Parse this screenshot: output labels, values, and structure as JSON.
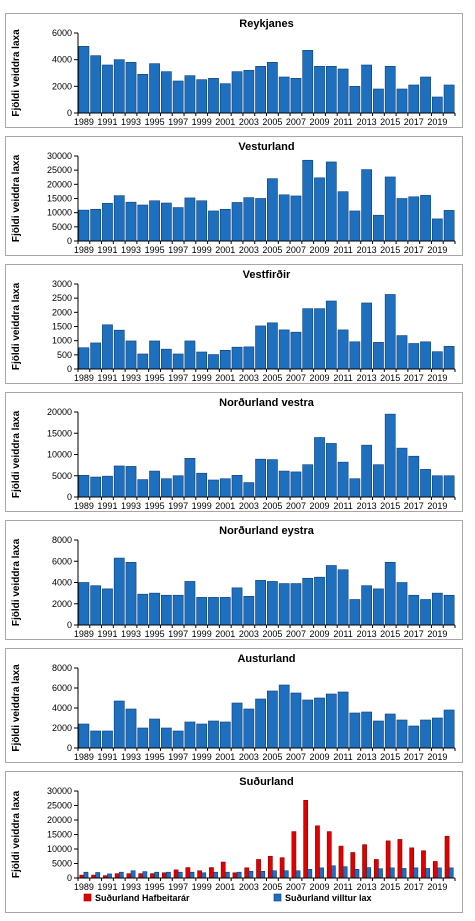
{
  "y_axis_label": "Fjöldi veiddra laxa",
  "colors": {
    "wild": "#1f6fbf",
    "wild_edge": "#0b3d73",
    "ranched": "#e00000",
    "ranched_edge": "#8a0000",
    "axis": "#000000"
  },
  "chart_data": [
    {
      "type": "bar",
      "title": "Reykjanes",
      "ylabel": "Fjöldi veiddra laxa",
      "ylim": [
        0,
        6000
      ],
      "yticks": [
        0,
        2000,
        4000,
        6000
      ],
      "x": [
        1989,
        1990,
        1991,
        1992,
        1993,
        1994,
        1995,
        1996,
        1997,
        1998,
        1999,
        2000,
        2001,
        2002,
        2003,
        2004,
        2005,
        2006,
        2007,
        2008,
        2009,
        2010,
        2011,
        2012,
        2013,
        2014,
        2015,
        2016,
        2017,
        2018,
        2019,
        2020
      ],
      "xtick_labels": [
        "1989",
        "1991",
        "1993",
        "1995",
        "1997",
        "1999",
        "2001",
        "2003",
        "2005",
        "2007",
        "2009",
        "2011",
        "2013",
        "2015",
        "2017",
        "2019"
      ],
      "series": [
        {
          "values": [
            5000,
            4300,
            3600,
            4000,
            3800,
            2900,
            3700,
            3100,
            2400,
            2800,
            2500,
            2600,
            2200,
            3100,
            3200,
            3500,
            3800,
            2700,
            2600,
            4700,
            3500,
            3500,
            3300,
            2000,
            3600,
            1800,
            3500,
            1800,
            2100,
            2700,
            1200,
            2100
          ]
        }
      ]
    },
    {
      "type": "bar",
      "title": "Vesturland",
      "ylabel": "Fjöldi veiddra laxa",
      "ylim": [
        0,
        30000
      ],
      "yticks": [
        0,
        5000,
        10000,
        15000,
        20000,
        25000,
        30000
      ],
      "x": [
        1989,
        1990,
        1991,
        1992,
        1993,
        1994,
        1995,
        1996,
        1997,
        1998,
        1999,
        2000,
        2001,
        2002,
        2003,
        2004,
        2005,
        2006,
        2007,
        2008,
        2009,
        2010,
        2011,
        2012,
        2013,
        2014,
        2015,
        2016,
        2017,
        2018,
        2019,
        2020
      ],
      "xtick_labels": [
        "1989",
        "1991",
        "1993",
        "1995",
        "1997",
        "1999",
        "2001",
        "2003",
        "2005",
        "2007",
        "2009",
        "2011",
        "2013",
        "2015",
        "2017",
        "2019"
      ],
      "series": [
        {
          "values": [
            10900,
            11200,
            13300,
            16000,
            13700,
            12700,
            14200,
            13400,
            11800,
            15200,
            14200,
            10600,
            11200,
            13600,
            15300,
            15000,
            22000,
            16300,
            15900,
            28500,
            22300,
            27900,
            17400,
            10600,
            25200,
            9100,
            22600,
            15000,
            15600,
            16100,
            7800,
            10800
          ]
        }
      ]
    },
    {
      "type": "bar",
      "title": "Vestfirðir",
      "ylabel": "Fjöldi veiddra laxa",
      "ylim": [
        0,
        3000
      ],
      "yticks": [
        0,
        500,
        1000,
        1500,
        2000,
        2500,
        3000
      ],
      "x": [
        1989,
        1990,
        1991,
        1992,
        1993,
        1994,
        1995,
        1996,
        1997,
        1998,
        1999,
        2000,
        2001,
        2002,
        2003,
        2004,
        2005,
        2006,
        2007,
        2008,
        2009,
        2010,
        2011,
        2012,
        2013,
        2014,
        2015,
        2016,
        2017,
        2018,
        2019,
        2020
      ],
      "xtick_labels": [
        "1989",
        "1991",
        "1993",
        "1995",
        "1997",
        "1999",
        "2001",
        "2003",
        "2005",
        "2007",
        "2009",
        "2011",
        "2013",
        "2015",
        "2017",
        "2019"
      ],
      "series": [
        {
          "values": [
            750,
            920,
            1560,
            1370,
            990,
            530,
            990,
            700,
            530,
            990,
            600,
            510,
            660,
            770,
            780,
            1520,
            1630,
            1380,
            1300,
            2130,
            2130,
            2400,
            1380,
            960,
            2330,
            940,
            2630,
            1180,
            900,
            960,
            610,
            800
          ]
        }
      ]
    },
    {
      "type": "bar",
      "title": "Norðurland  vestra",
      "ylabel": "Fjöldi veiddra laxa",
      "ylim": [
        0,
        20000
      ],
      "yticks": [
        0,
        5000,
        10000,
        15000,
        20000
      ],
      "x": [
        1989,
        1990,
        1991,
        1992,
        1993,
        1994,
        1995,
        1996,
        1997,
        1998,
        1999,
        2000,
        2001,
        2002,
        2003,
        2004,
        2005,
        2006,
        2007,
        2008,
        2009,
        2010,
        2011,
        2012,
        2013,
        2014,
        2015,
        2016,
        2017,
        2018,
        2019,
        2020
      ],
      "xtick_labels": [
        "1989",
        "1991",
        "1993",
        "1995",
        "1997",
        "1999",
        "2001",
        "2003",
        "2005",
        "2007",
        "2009",
        "2011",
        "2013",
        "2015",
        "2017",
        "2019"
      ],
      "series": [
        {
          "values": [
            5100,
            4700,
            4900,
            7300,
            7200,
            4100,
            6100,
            4300,
            5000,
            9100,
            5600,
            4000,
            4300,
            5100,
            3400,
            8900,
            8800,
            6100,
            5900,
            7600,
            14000,
            12600,
            8200,
            4300,
            12200,
            7600,
            19500,
            11500,
            9600,
            6500,
            5000,
            5000
          ]
        }
      ]
    },
    {
      "type": "bar",
      "title": "Norðurland  eystra",
      "ylabel": "Fjöldi veiddra laxa",
      "ylim": [
        0,
        8000
      ],
      "yticks": [
        0,
        2000,
        4000,
        6000,
        8000
      ],
      "x": [
        1989,
        1990,
        1991,
        1992,
        1993,
        1994,
        1995,
        1996,
        1997,
        1998,
        1999,
        2000,
        2001,
        2002,
        2003,
        2004,
        2005,
        2006,
        2007,
        2008,
        2009,
        2010,
        2011,
        2012,
        2013,
        2014,
        2015,
        2016,
        2017,
        2018,
        2019,
        2020
      ],
      "xtick_labels": [
        "1989",
        "1991",
        "1993",
        "1995",
        "1997",
        "1999",
        "2001",
        "2003",
        "2005",
        "2007",
        "2009",
        "2011",
        "2013",
        "2015",
        "2017",
        "2019"
      ],
      "series": [
        {
          "values": [
            4000,
            3700,
            3400,
            6300,
            5900,
            2900,
            3000,
            2800,
            2800,
            4100,
            2600,
            2600,
            2600,
            3500,
            2700,
            4200,
            4100,
            3900,
            3900,
            4400,
            4500,
            5600,
            5200,
            2400,
            3700,
            3400,
            5900,
            4000,
            2800,
            2400,
            3000,
            2800
          ]
        }
      ]
    },
    {
      "type": "bar",
      "title": "Austurland",
      "ylabel": "Fjöldi veiddra laxa",
      "ylim": [
        0,
        8000
      ],
      "yticks": [
        0,
        2000,
        4000,
        6000,
        8000
      ],
      "x": [
        1989,
        1990,
        1991,
        1992,
        1993,
        1994,
        1995,
        1996,
        1997,
        1998,
        1999,
        2000,
        2001,
        2002,
        2003,
        2004,
        2005,
        2006,
        2007,
        2008,
        2009,
        2010,
        2011,
        2012,
        2013,
        2014,
        2015,
        2016,
        2017,
        2018,
        2019,
        2020
      ],
      "xtick_labels": [
        "1989",
        "1991",
        "1993",
        "1995",
        "1997",
        "1999",
        "2001",
        "2003",
        "2005",
        "2007",
        "2009",
        "2011",
        "2013",
        "2015",
        "2017",
        "2019"
      ],
      "series": [
        {
          "values": [
            2400,
            1700,
            1700,
            4700,
            3900,
            2000,
            2900,
            2000,
            1700,
            2600,
            2400,
            2700,
            2600,
            4500,
            3900,
            4900,
            5700,
            6300,
            5500,
            4800,
            5000,
            5400,
            5600,
            3500,
            3600,
            2700,
            3400,
            2800,
            2200,
            2800,
            3000,
            3800
          ]
        }
      ]
    },
    {
      "type": "bar",
      "title": "Suðurland",
      "ylabel": "Fjöldi veiddra laxa",
      "ylim": [
        0,
        30000
      ],
      "yticks": [
        0,
        5000,
        10000,
        15000,
        20000,
        25000,
        30000
      ],
      "x": [
        1989,
        1990,
        1991,
        1992,
        1993,
        1994,
        1995,
        1996,
        1997,
        1998,
        1999,
        2000,
        2001,
        2002,
        2003,
        2004,
        2005,
        2006,
        2007,
        2008,
        2009,
        2010,
        2011,
        2012,
        2013,
        2014,
        2015,
        2016,
        2017,
        2018,
        2019,
        2020
      ],
      "xtick_labels": [
        "1989",
        "1991",
        "1993",
        "1995",
        "1997",
        "1999",
        "2001",
        "2003",
        "2005",
        "2007",
        "2009",
        "2011",
        "2013",
        "2015",
        "2017",
        "2019"
      ],
      "legend": "bottom",
      "series": [
        {
          "name": "Suðurland Hafbeitarár",
          "values": [
            1000,
            1000,
            800,
            1500,
            1500,
            1500,
            1500,
            1800,
            2800,
            3600,
            2500,
            3600,
            5500,
            1800,
            3500,
            6400,
            7500,
            7000,
            16000,
            26800,
            18000,
            16000,
            11000,
            8800,
            11500,
            6400,
            12800,
            13300,
            10400,
            9400,
            5700,
            14400
          ]
        },
        {
          "name": "Suðurland villtur lax",
          "values": [
            2000,
            1900,
            1400,
            2000,
            2500,
            2200,
            2000,
            2000,
            2000,
            2000,
            1800,
            2000,
            2000,
            2000,
            2300,
            2300,
            2500,
            2500,
            2500,
            3000,
            3500,
            4200,
            3900,
            3000,
            3600,
            3200,
            3500,
            3300,
            3500,
            3300,
            3500,
            3500
          ]
        }
      ]
    }
  ]
}
